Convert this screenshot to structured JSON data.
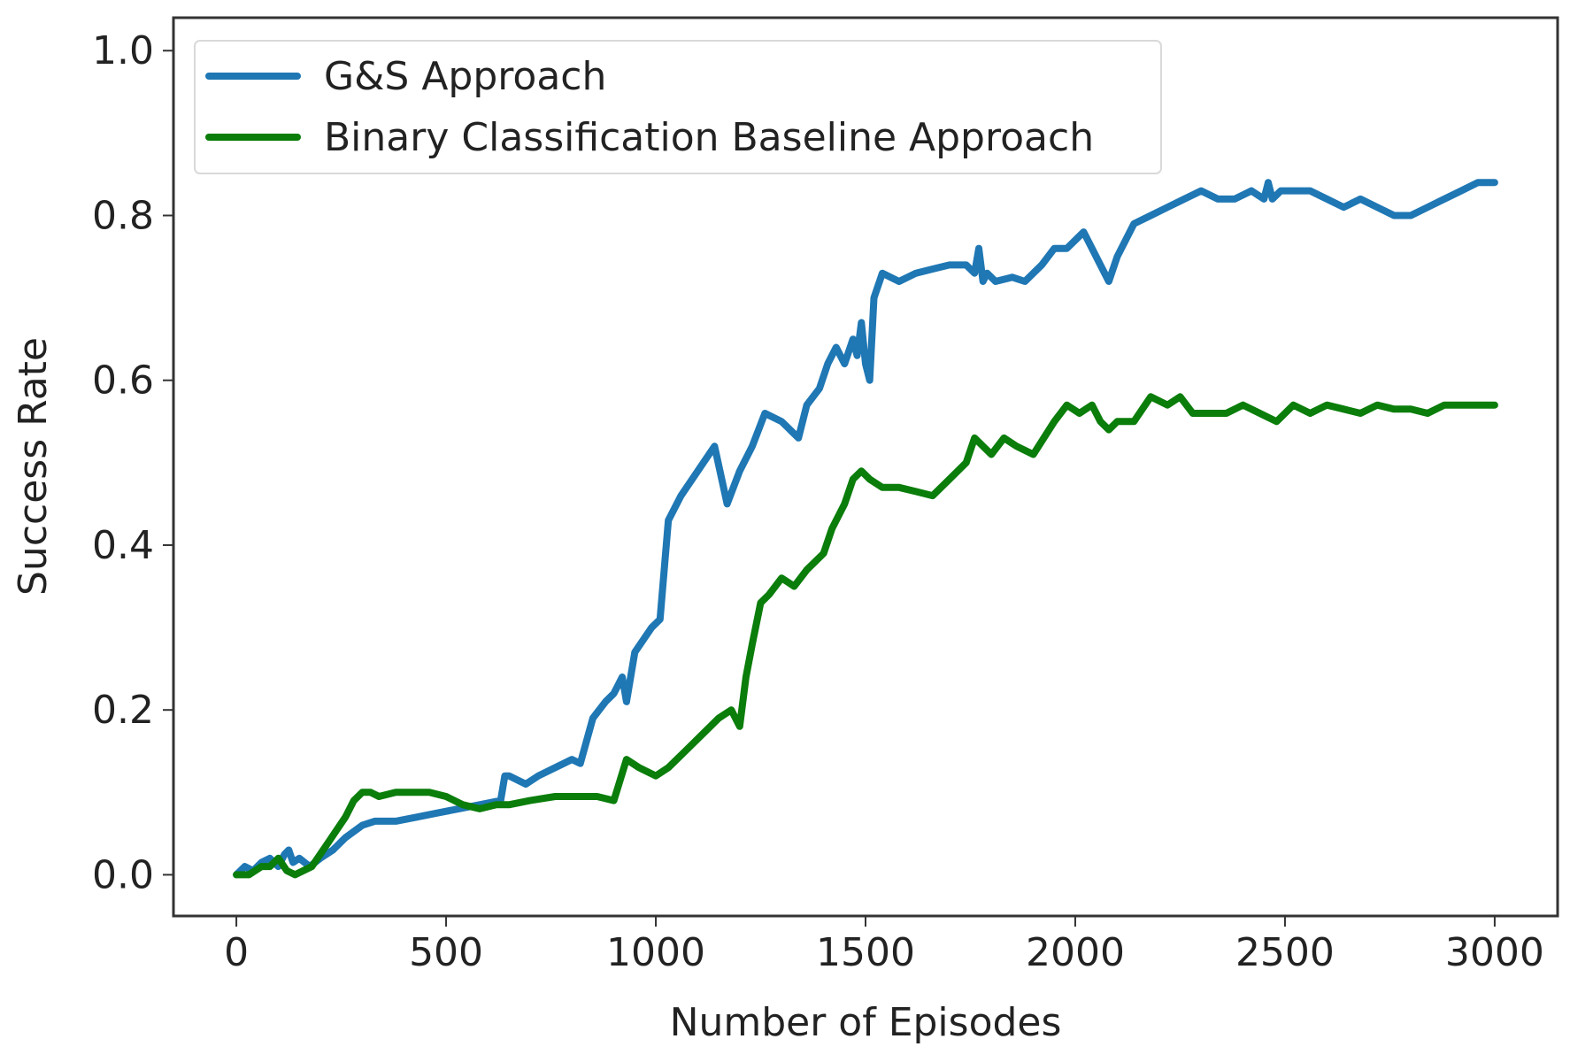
{
  "chart_data": {
    "type": "line",
    "title": "",
    "xlabel": "Number of Episodes",
    "ylabel": "Success Rate",
    "xlim": [
      -150,
      3150
    ],
    "ylim": [
      -0.05,
      1.04
    ],
    "xticks": [
      0,
      500,
      1000,
      1500,
      2000,
      2500,
      3000
    ],
    "yticks": [
      0.0,
      0.2,
      0.4,
      0.6,
      0.8,
      1.0
    ],
    "xtick_labels": [
      "0",
      "500",
      "1000",
      "1500",
      "2000",
      "2500",
      "3000"
    ],
    "ytick_labels": [
      "0.0",
      "0.2",
      "0.4",
      "0.6",
      "0.8",
      "1.0"
    ],
    "grid": false,
    "legend_position": "top-left",
    "series": [
      {
        "name": "G&S Approach",
        "color": "#1f77b4",
        "x": [
          0,
          20,
          40,
          60,
          80,
          100,
          115,
          125,
          135,
          150,
          175,
          200,
          230,
          260,
          300,
          330,
          380,
          430,
          480,
          530,
          580,
          630,
          640,
          650,
          690,
          720,
          760,
          800,
          820,
          850,
          880,
          900,
          920,
          930,
          950,
          990,
          1010,
          1030,
          1060,
          1100,
          1140,
          1170,
          1200,
          1230,
          1260,
          1300,
          1340,
          1360,
          1390,
          1410,
          1430,
          1450,
          1470,
          1480,
          1490,
          1500,
          1510,
          1520,
          1540,
          1580,
          1620,
          1660,
          1700,
          1740,
          1760,
          1770,
          1780,
          1790,
          1810,
          1850,
          1880,
          1920,
          1950,
          1980,
          2000,
          2020,
          2040,
          2060,
          2080,
          2100,
          2140,
          2180,
          2220,
          2260,
          2300,
          2340,
          2380,
          2420,
          2450,
          2460,
          2470,
          2490,
          2520,
          2560,
          2600,
          2640,
          2680,
          2720,
          2760,
          2800,
          2840,
          2880,
          2920,
          2960,
          3000
        ],
        "values": [
          0.0,
          0.01,
          0.005,
          0.015,
          0.02,
          0.01,
          0.025,
          0.03,
          0.015,
          0.02,
          0.01,
          0.02,
          0.03,
          0.045,
          0.06,
          0.065,
          0.065,
          0.07,
          0.075,
          0.08,
          0.085,
          0.09,
          0.12,
          0.12,
          0.11,
          0.12,
          0.13,
          0.14,
          0.135,
          0.19,
          0.21,
          0.22,
          0.24,
          0.21,
          0.27,
          0.3,
          0.31,
          0.43,
          0.46,
          0.49,
          0.52,
          0.45,
          0.49,
          0.52,
          0.56,
          0.55,
          0.53,
          0.57,
          0.59,
          0.62,
          0.64,
          0.62,
          0.65,
          0.63,
          0.67,
          0.62,
          0.6,
          0.7,
          0.73,
          0.72,
          0.73,
          0.735,
          0.74,
          0.74,
          0.73,
          0.76,
          0.72,
          0.73,
          0.72,
          0.725,
          0.72,
          0.74,
          0.76,
          0.76,
          0.77,
          0.78,
          0.76,
          0.74,
          0.72,
          0.75,
          0.79,
          0.8,
          0.81,
          0.82,
          0.83,
          0.82,
          0.82,
          0.83,
          0.82,
          0.84,
          0.82,
          0.83,
          0.83,
          0.83,
          0.82,
          0.81,
          0.82,
          0.81,
          0.8,
          0.8,
          0.81,
          0.82,
          0.83,
          0.84,
          0.84
        ]
      },
      {
        "name": "Binary Classification Baseline Approach",
        "color": "#0a7d0a",
        "x": [
          0,
          30,
          60,
          80,
          100,
          120,
          140,
          180,
          220,
          260,
          280,
          300,
          320,
          340,
          380,
          420,
          460,
          500,
          540,
          580,
          620,
          650,
          700,
          760,
          820,
          860,
          900,
          930,
          960,
          1000,
          1030,
          1070,
          1110,
          1150,
          1180,
          1200,
          1215,
          1230,
          1250,
          1270,
          1300,
          1330,
          1360,
          1380,
          1400,
          1420,
          1450,
          1470,
          1490,
          1510,
          1540,
          1580,
          1620,
          1660,
          1700,
          1740,
          1760,
          1780,
          1800,
          1830,
          1860,
          1900,
          1950,
          1980,
          2010,
          2040,
          2060,
          2080,
          2100,
          2140,
          2180,
          2220,
          2250,
          2280,
          2320,
          2360,
          2400,
          2440,
          2480,
          2520,
          2560,
          2600,
          2640,
          2680,
          2720,
          2760,
          2800,
          2840,
          2880,
          2920,
          2960,
          3000
        ],
        "values": [
          0.0,
          0.0,
          0.01,
          0.01,
          0.02,
          0.005,
          0.0,
          0.01,
          0.04,
          0.07,
          0.09,
          0.1,
          0.1,
          0.095,
          0.1,
          0.1,
          0.1,
          0.095,
          0.085,
          0.08,
          0.085,
          0.085,
          0.09,
          0.095,
          0.095,
          0.095,
          0.09,
          0.14,
          0.13,
          0.12,
          0.13,
          0.15,
          0.17,
          0.19,
          0.2,
          0.18,
          0.24,
          0.28,
          0.33,
          0.34,
          0.36,
          0.35,
          0.37,
          0.38,
          0.39,
          0.42,
          0.45,
          0.48,
          0.49,
          0.48,
          0.47,
          0.47,
          0.465,
          0.46,
          0.48,
          0.5,
          0.53,
          0.52,
          0.51,
          0.53,
          0.52,
          0.51,
          0.55,
          0.57,
          0.56,
          0.57,
          0.55,
          0.54,
          0.55,
          0.55,
          0.58,
          0.57,
          0.58,
          0.56,
          0.56,
          0.56,
          0.57,
          0.56,
          0.55,
          0.57,
          0.56,
          0.57,
          0.565,
          0.56,
          0.57,
          0.565,
          0.565,
          0.56,
          0.57,
          0.57,
          0.57,
          0.57
        ]
      }
    ]
  }
}
